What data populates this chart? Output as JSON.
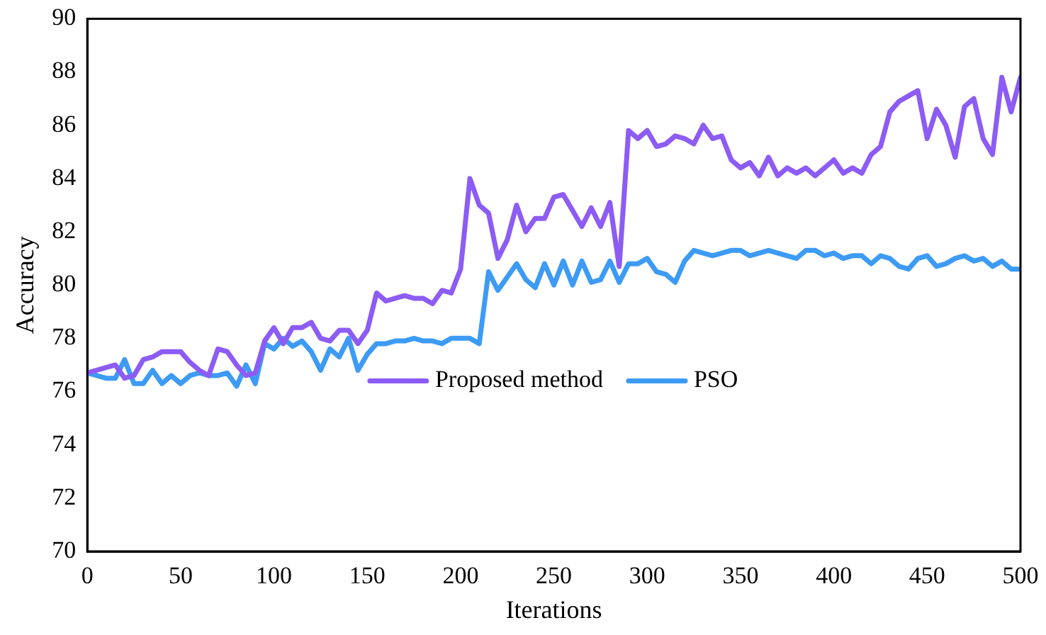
{
  "chart_data": {
    "type": "line",
    "xlabel": "Iterations",
    "ylabel": "Accuracy",
    "x": [
      0,
      5,
      10,
      15,
      20,
      25,
      30,
      35,
      40,
      45,
      50,
      55,
      60,
      65,
      70,
      75,
      80,
      85,
      90,
      95,
      100,
      105,
      110,
      115,
      120,
      125,
      130,
      135,
      140,
      145,
      150,
      155,
      160,
      165,
      170,
      175,
      180,
      185,
      190,
      195,
      200,
      205,
      210,
      215,
      220,
      225,
      230,
      235,
      240,
      245,
      250,
      255,
      260,
      265,
      270,
      275,
      280,
      285,
      290,
      295,
      300,
      305,
      310,
      315,
      320,
      325,
      330,
      335,
      340,
      345,
      350,
      355,
      360,
      365,
      370,
      375,
      380,
      385,
      390,
      395,
      400,
      405,
      410,
      415,
      420,
      425,
      430,
      435,
      440,
      445,
      450,
      455,
      460,
      465,
      470,
      475,
      480,
      485,
      490,
      495,
      500
    ],
    "series": [
      {
        "name": "Proposed method",
        "color": "#8c5cf5",
        "values": [
          76.7,
          76.8,
          76.9,
          77.0,
          76.5,
          76.6,
          77.2,
          77.3,
          77.5,
          77.5,
          77.5,
          77.1,
          76.8,
          76.6,
          77.6,
          77.5,
          77.0,
          76.6,
          76.7,
          77.9,
          78.4,
          77.8,
          78.4,
          78.4,
          78.6,
          78.0,
          77.9,
          78.3,
          78.3,
          77.8,
          78.3,
          79.7,
          79.4,
          79.5,
          79.6,
          79.5,
          79.5,
          79.3,
          79.8,
          79.7,
          80.6,
          84.0,
          83.0,
          82.7,
          81.0,
          81.7,
          83.0,
          82.0,
          82.5,
          82.5,
          83.3,
          83.4,
          82.8,
          82.2,
          82.9,
          82.2,
          83.1,
          80.7,
          85.8,
          85.5,
          85.8,
          85.2,
          85.3,
          85.6,
          85.5,
          85.3,
          86.0,
          85.5,
          85.6,
          84.7,
          84.4,
          84.6,
          84.1,
          84.8,
          84.1,
          84.4,
          84.2,
          84.4,
          84.1,
          84.4,
          84.7,
          84.2,
          84.4,
          84.2,
          84.9,
          85.2,
          86.5,
          86.9,
          87.1,
          87.3,
          85.5,
          86.6,
          86.0,
          84.8,
          86.7,
          87.0,
          85.5,
          84.9,
          87.8,
          86.5,
          87.8
        ]
      },
      {
        "name": "PSO",
        "color": "#3d9bf5",
        "values": [
          76.7,
          76.6,
          76.5,
          76.5,
          77.2,
          76.3,
          76.3,
          76.8,
          76.3,
          76.6,
          76.3,
          76.6,
          76.7,
          76.6,
          76.6,
          76.7,
          76.2,
          77.0,
          76.3,
          77.8,
          77.6,
          78.0,
          77.7,
          77.9,
          77.5,
          76.8,
          77.6,
          77.3,
          78.0,
          76.8,
          77.4,
          77.8,
          77.8,
          77.9,
          77.9,
          78.0,
          77.9,
          77.9,
          77.8,
          78.0,
          78.0,
          78.0,
          77.8,
          80.5,
          79.8,
          80.3,
          80.8,
          80.2,
          79.9,
          80.8,
          80.0,
          80.9,
          80.0,
          80.9,
          80.1,
          80.2,
          80.9,
          80.1,
          80.8,
          80.8,
          81.0,
          80.5,
          80.4,
          80.1,
          80.9,
          81.3,
          81.2,
          81.1,
          81.2,
          81.3,
          81.3,
          81.1,
          81.2,
          81.3,
          81.2,
          81.1,
          81.0,
          81.3,
          81.3,
          81.1,
          81.2,
          81.0,
          81.1,
          81.1,
          80.8,
          81.1,
          81.0,
          80.7,
          80.6,
          81.0,
          81.1,
          80.7,
          80.8,
          81.0,
          81.1,
          80.9,
          81.0,
          80.7,
          80.9,
          80.6,
          80.6
        ]
      }
    ],
    "xlim": [
      0,
      500
    ],
    "xticks": [
      0,
      50,
      100,
      150,
      200,
      250,
      300,
      350,
      400,
      450,
      500
    ],
    "ylim": [
      70,
      90
    ],
    "yticks": [
      70,
      72,
      74,
      76,
      78,
      80,
      82,
      84,
      86,
      88,
      90
    ],
    "grid": false,
    "legend": "center",
    "marker": "none",
    "line_style": "solid"
  }
}
